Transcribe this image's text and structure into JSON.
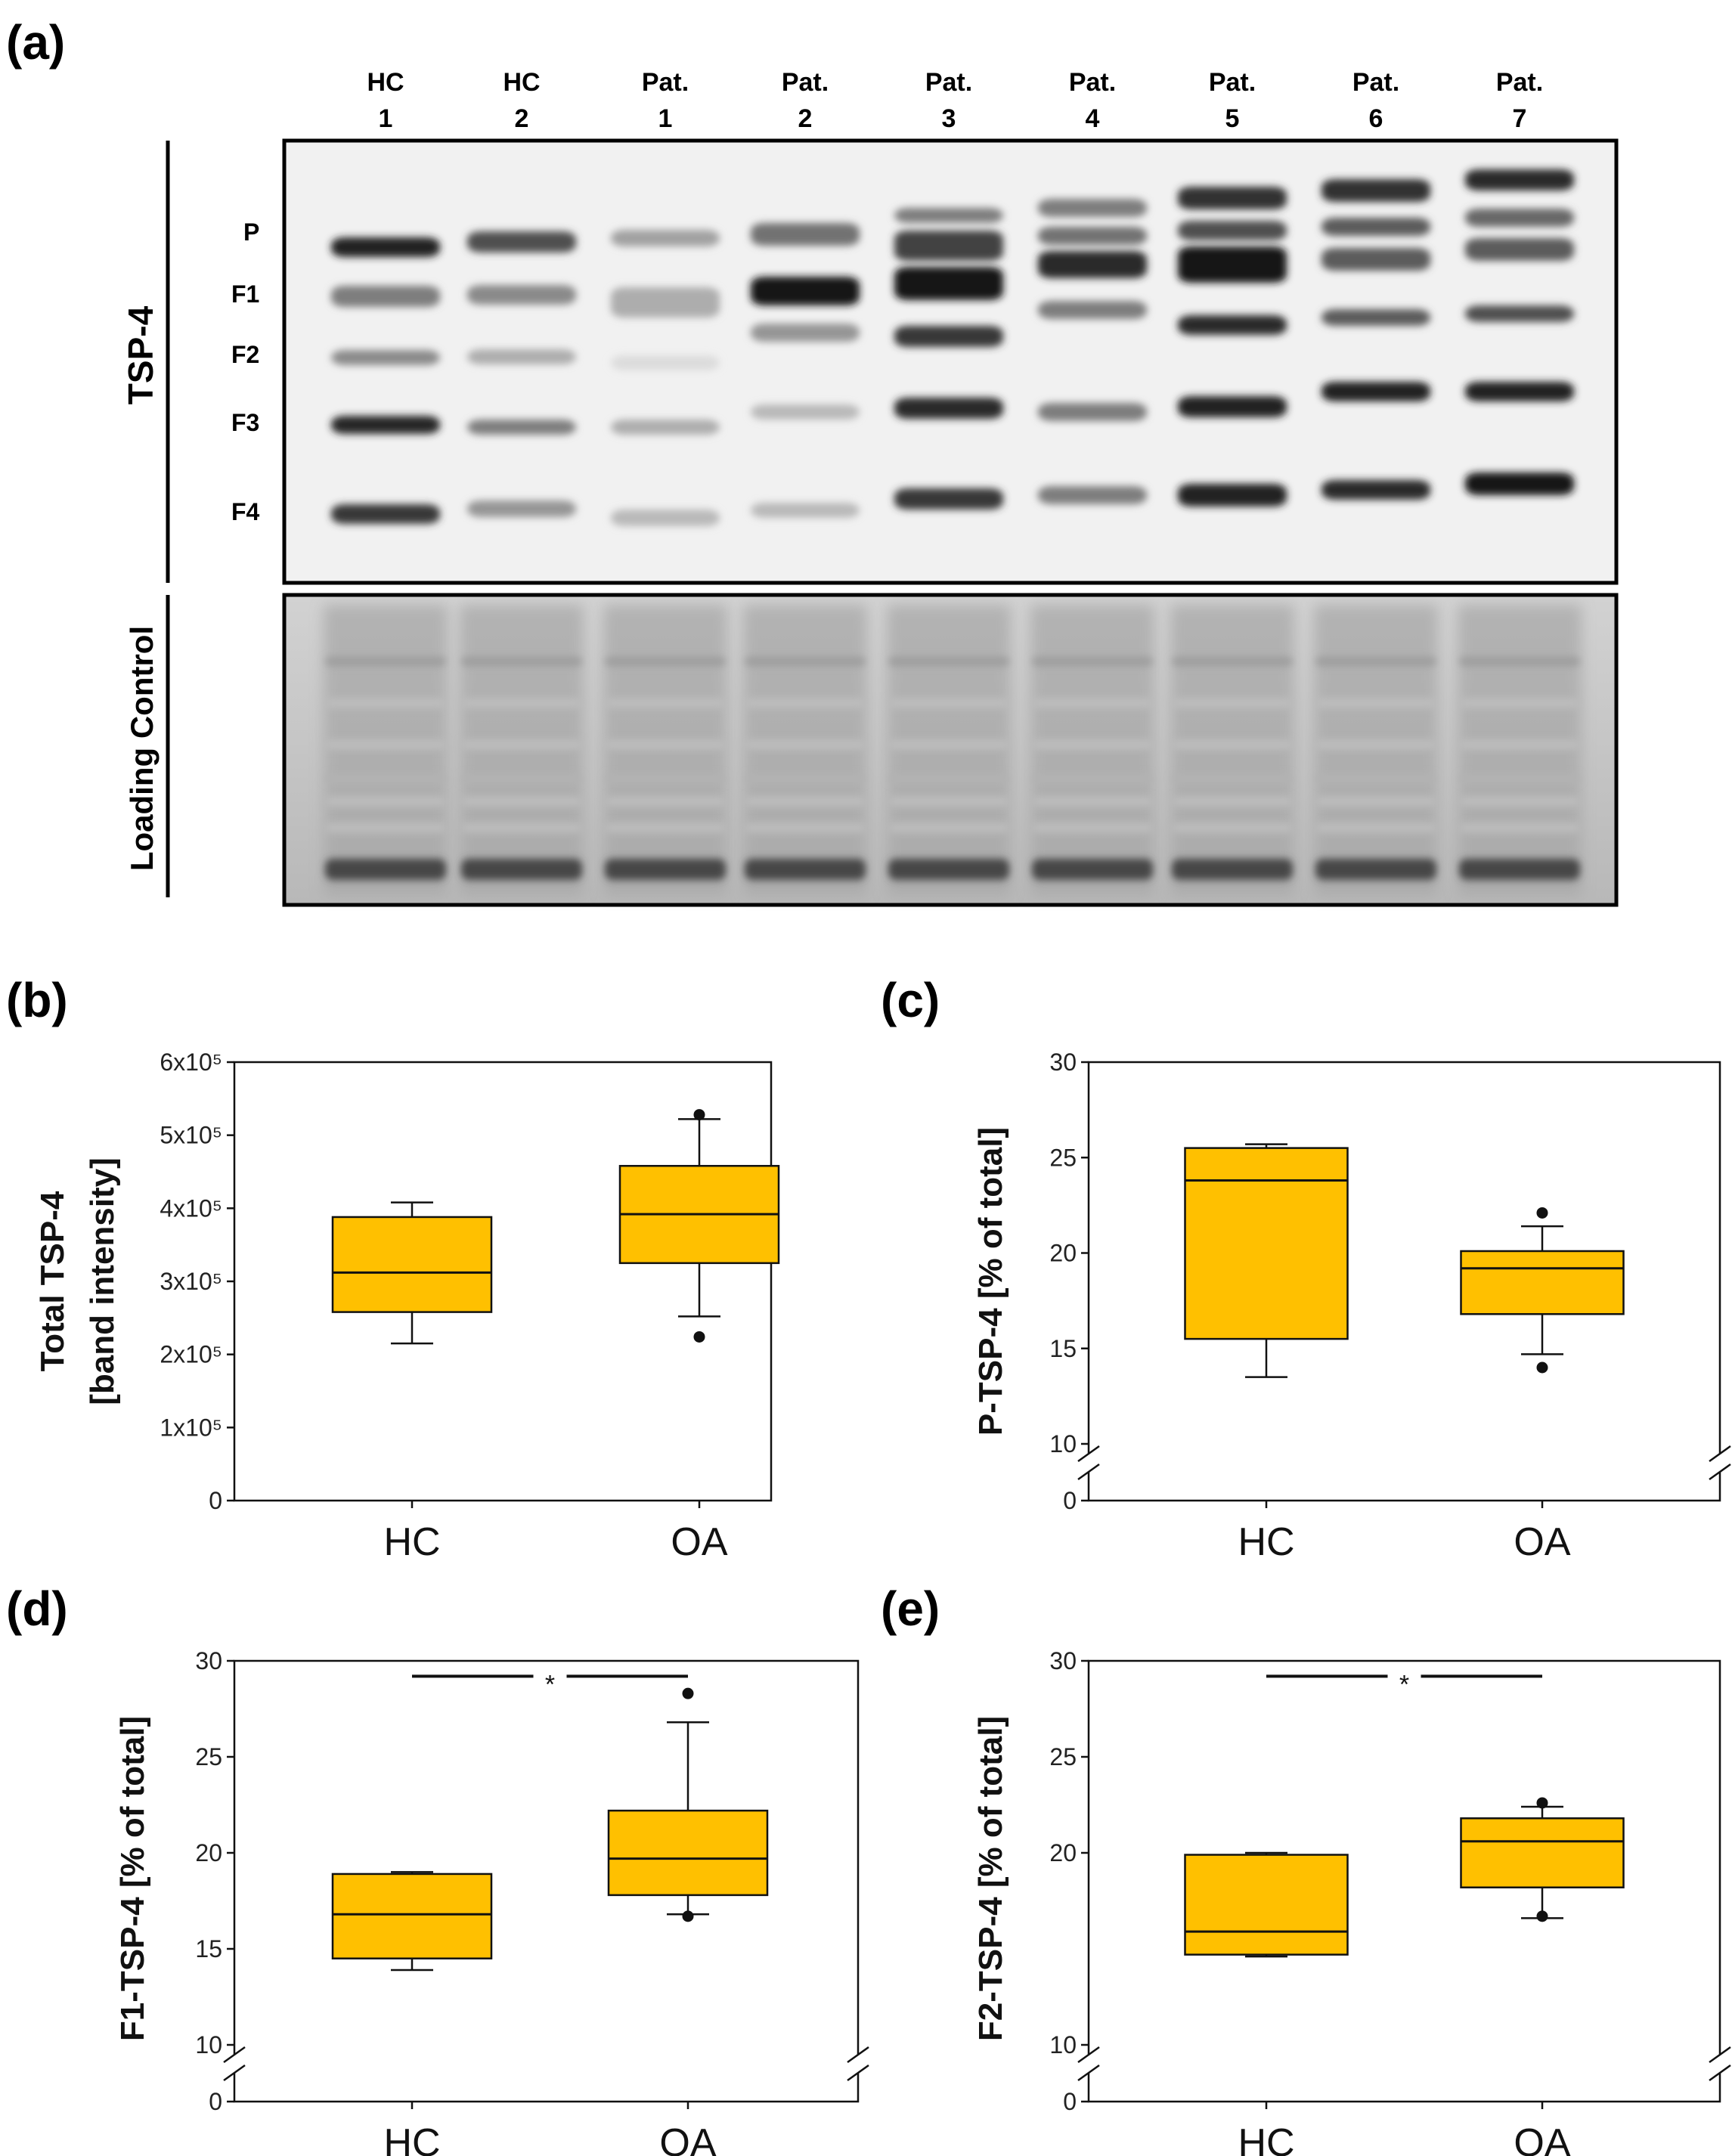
{
  "blot": {
    "panel_label": "(a)",
    "lanes": [
      {
        "group": "HC",
        "num": "1"
      },
      {
        "group": "HC",
        "num": "2"
      },
      {
        "group": "Pat.",
        "num": "1"
      },
      {
        "group": "Pat.",
        "num": "2"
      },
      {
        "group": "Pat.",
        "num": "3"
      },
      {
        "group": "Pat.",
        "num": "4"
      },
      {
        "group": "Pat.",
        "num": "5"
      },
      {
        "group": "Pat.",
        "num": "6"
      },
      {
        "group": "Pat.",
        "num": "7"
      }
    ],
    "bands": [
      "P",
      "F1",
      "F2",
      "F3",
      "F4"
    ],
    "tsp_label": "TSP-4",
    "loading_label": "Loading Control"
  },
  "chart_data": [
    {
      "id": "b",
      "panel_label": "(b)",
      "type": "box",
      "ylabel_lines": [
        "Total TSP-4",
        "[band intensity]"
      ],
      "categories": [
        "HC",
        "OA"
      ],
      "yticks": [
        0,
        100000,
        200000,
        300000,
        400000,
        500000,
        600000
      ],
      "ytick_labels": [
        "0",
        "1x10⁵",
        "2x10⁵",
        "3x10⁵",
        "4x10⁵",
        "5x10⁵",
        "6x10⁵"
      ],
      "ylim": [
        0,
        600000
      ],
      "broken": false,
      "boxes": [
        {
          "q1": 258000,
          "median": 312000,
          "q3": 388000,
          "whisker_low": 215000,
          "whisker_high": 408000,
          "outliers": []
        },
        {
          "q1": 325000,
          "median": 392000,
          "q3": 458000,
          "whisker_low": 252000,
          "whisker_high": 522000,
          "outliers": [
            224000,
            528000
          ]
        }
      ],
      "significance": null
    },
    {
      "id": "c",
      "panel_label": "(c)",
      "type": "box",
      "ylabel_lines": [
        "P-TSP-4 [% of total]"
      ],
      "categories": [
        "HC",
        "OA"
      ],
      "yticks": [
        0,
        10,
        15,
        20,
        25,
        30
      ],
      "ytick_labels": [
        "0",
        "10",
        "15",
        "20",
        "25",
        "30"
      ],
      "ylim": [
        10,
        30
      ],
      "broken": true,
      "boxes": [
        {
          "q1": 15.5,
          "median": 23.8,
          "q3": 25.5,
          "whisker_low": 13.5,
          "whisker_high": 25.7,
          "outliers": []
        },
        {
          "q1": 16.8,
          "median": 19.2,
          "q3": 20.1,
          "whisker_low": 14.7,
          "whisker_high": 21.4,
          "outliers": [
            14.0,
            22.1
          ]
        }
      ],
      "significance": null
    },
    {
      "id": "d",
      "panel_label": "(d)",
      "type": "box",
      "ylabel_lines": [
        "F1-TSP-4 [% of total]"
      ],
      "categories": [
        "HC",
        "OA"
      ],
      "yticks": [
        0,
        10,
        15,
        20,
        25,
        30
      ],
      "ytick_labels": [
        "0",
        "10",
        "15",
        "20",
        "25",
        "30"
      ],
      "ylim": [
        10,
        30
      ],
      "broken": true,
      "boxes": [
        {
          "q1": 14.5,
          "median": 16.8,
          "q3": 18.9,
          "whisker_low": 13.9,
          "whisker_high": 19.0,
          "outliers": []
        },
        {
          "q1": 17.8,
          "median": 19.7,
          "q3": 22.2,
          "whisker_low": 16.8,
          "whisker_high": 26.8,
          "outliers": [
            16.7,
            28.3
          ]
        }
      ],
      "significance": {
        "label": "*",
        "y": 29.2
      }
    },
    {
      "id": "e",
      "panel_label": "(e)",
      "type": "box",
      "ylabel_lines": [
        "F2-TSP-4 [% of total]"
      ],
      "categories": [
        "HC",
        "OA"
      ],
      "yticks": [
        0,
        10,
        20,
        25,
        30
      ],
      "ytick_labels": [
        "0",
        "10",
        "20",
        "25",
        "30"
      ],
      "ylim": [
        10,
        30
      ],
      "broken": true,
      "boxes": [
        {
          "q1": 14.7,
          "median": 15.9,
          "q3": 19.9,
          "whisker_low": 14.6,
          "whisker_high": 20.0,
          "outliers": []
        },
        {
          "q1": 18.2,
          "median": 20.6,
          "q3": 21.8,
          "whisker_low": 16.6,
          "whisker_high": 22.4,
          "outliers": [
            16.7,
            22.6
          ]
        }
      ],
      "significance": {
        "label": "*",
        "y": 29.2
      }
    }
  ],
  "colors": {
    "box_fill": "#ffc000",
    "axis": "#111111"
  }
}
